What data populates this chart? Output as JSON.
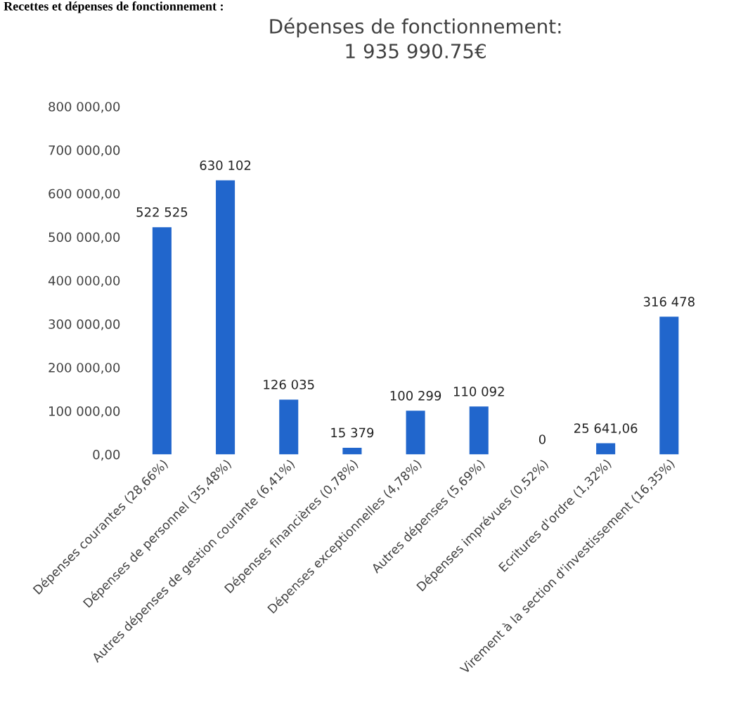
{
  "chart_data": {
    "type": "bar",
    "title": "Dépenses de fonctionnement:\n1 935 990.75€",
    "annotations": [
      "Recettes et dépenses de fonctionnement :"
    ],
    "categories": [
      "Dépenses courantes (28,66%)",
      "Dépenses de personnel (35,48%)",
      "Autres dépenses de gestion courante (6,41%)",
      "Dépenses financières (0,78%)",
      "Dépenses exceptionnelles (4,78%)",
      "Autres dépenses (5,69%)",
      "Dépenses imprévues (0,52%)",
      "Ecritures d'ordre (1,32%)",
      "Virement à la section d'investissement (16,35%)"
    ],
    "values": [
      522525,
      630102,
      126035,
      15379,
      100299,
      110092,
      0,
      25641.06,
      316478
    ],
    "value_labels": [
      "522 525",
      "630 102",
      "126 035",
      "15 379",
      "100 299",
      "110 092",
      "0",
      "25 641,06",
      "316 478"
    ],
    "color": "#2166cc",
    "ylim": [
      0,
      800000
    ],
    "yticks": [
      {
        "value": 0,
        "label": "0,00"
      },
      {
        "value": 100000,
        "label": "100 000,00"
      },
      {
        "value": 200000,
        "label": "200 000,00"
      },
      {
        "value": 300000,
        "label": "300 000,00"
      },
      {
        "value": 400000,
        "label": "400 000,00"
      },
      {
        "value": 500000,
        "label": "500 000,00"
      },
      {
        "value": 600000,
        "label": "600 000,00"
      },
      {
        "value": 700000,
        "label": "700 000,00"
      },
      {
        "value": 800000,
        "label": "800 000,00"
      }
    ],
    "grid": false,
    "legend": false
  }
}
